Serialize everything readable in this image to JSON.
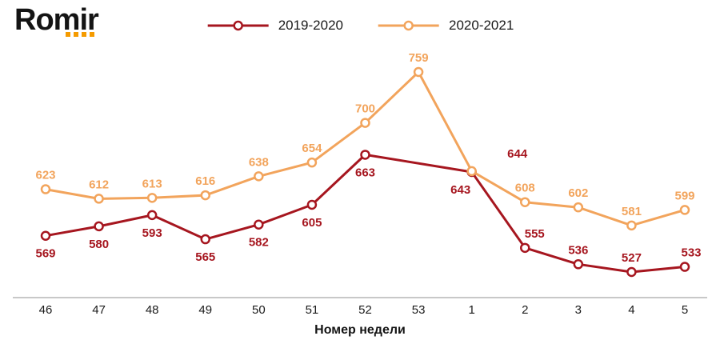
{
  "logo": {
    "text": "Romir",
    "dot_color": "#F59B00",
    "dot_count": 4
  },
  "legend": {
    "items": [
      {
        "label": "2019-2020",
        "color": "#A6161F"
      },
      {
        "label": "2020-2021",
        "color": "#F2A45C"
      }
    ]
  },
  "chart_data": {
    "type": "line",
    "title": "",
    "xlabel": "Номер недели",
    "ylabel": "",
    "ylim": [
      500,
      800
    ],
    "grid": false,
    "legend_position": "top",
    "categories": [
      "46",
      "47",
      "48",
      "49",
      "50",
      "51",
      "52",
      "53",
      "1",
      "2",
      "3",
      "4",
      "5"
    ],
    "series": [
      {
        "name": "2019-2020",
        "color": "#A6161F",
        "marker": "open-circle",
        "values": [
          569,
          580,
          593,
          565,
          582,
          605,
          663,
          null,
          643,
          555,
          536,
          527,
          533
        ],
        "label_default": "below",
        "label_overrides": {
          "8": {
            "dx": -14
          },
          "9": {
            "dx": 12,
            "position": "above"
          },
          "10": {
            "position": "above"
          },
          "11": {
            "position": "above"
          },
          "12": {
            "dx": 8,
            "position": "above"
          }
        }
      },
      {
        "name": "2020-2021",
        "color": "#F2A45C",
        "marker": "open-circle",
        "values": [
          623,
          612,
          613,
          616,
          638,
          654,
          700,
          759,
          644,
          608,
          602,
          581,
          599
        ],
        "label_default": "above",
        "label_overrides": {
          "8": {
            "dx": 57,
            "dy": -4,
            "color": "#A6161F"
          }
        }
      }
    ]
  }
}
